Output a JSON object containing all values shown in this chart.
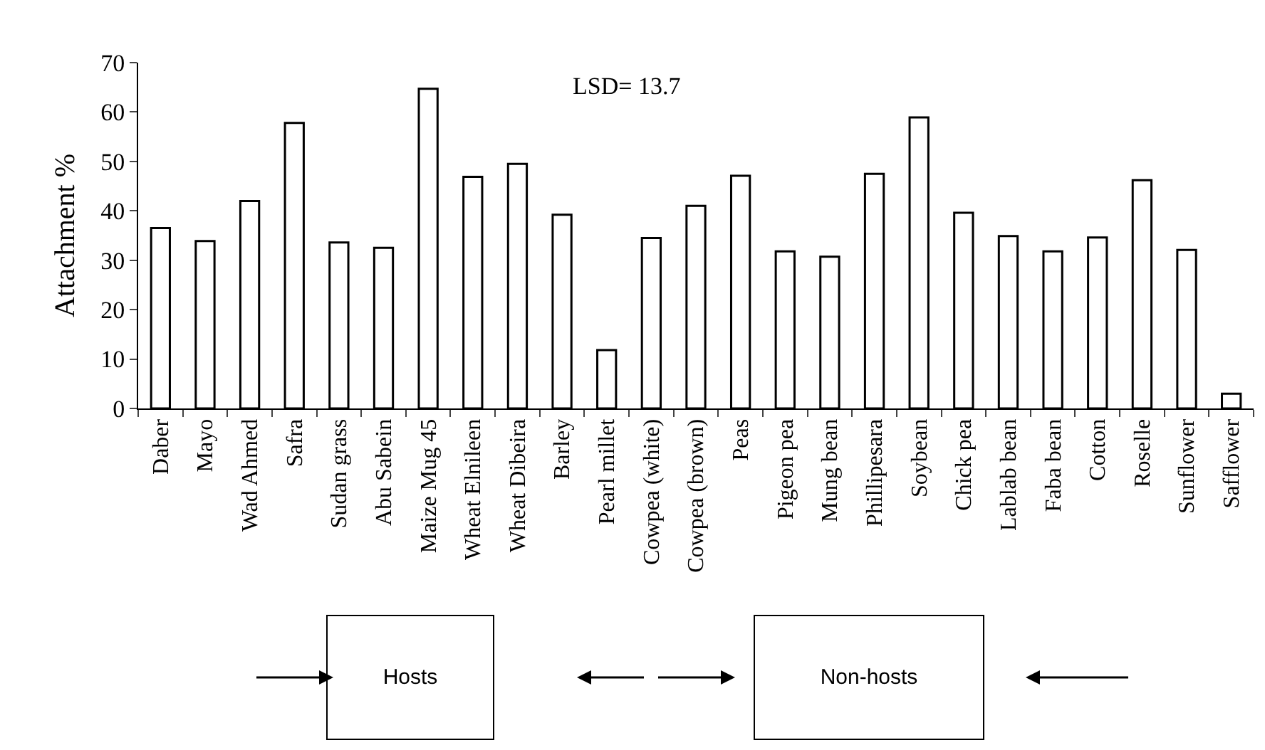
{
  "chart_data": {
    "type": "bar",
    "ylabel": "Attachment %",
    "categories": [
      "Daber",
      "Mayo",
      "Wad Ahmed",
      "Safra",
      "Sudan grass",
      "Abu Sabein",
      "Maize Mug 45",
      "Wheat Elnileen",
      "Wheat Dibeira",
      "Barley",
      "Pearl millet",
      "Cowpea (white)",
      "Cowpea (brown)",
      "Peas",
      "Pigeon pea",
      "Mung bean",
      "Phillipesara",
      "Soybean",
      "Chick pea",
      "Lablab bean",
      "Faba bean",
      "Cotton",
      "Roselle",
      "Sunflower",
      "Safflower"
    ],
    "values": [
      36.5,
      33.9,
      42.0,
      57.8,
      33.6,
      32.5,
      64.7,
      46.9,
      49.5,
      39.2,
      11.8,
      34.5,
      41.0,
      47.1,
      31.8,
      30.7,
      47.5,
      58.9,
      39.6,
      34.9,
      31.8,
      34.6,
      46.2,
      32.1,
      3.0
    ],
    "color": "#ffffff",
    "ylim": [
      0,
      70
    ],
    "yticks": [
      0,
      10,
      20,
      30,
      40,
      50,
      60,
      70
    ],
    "grid": false,
    "annotations": [
      "LSD= 13.7",
      "Hosts",
      "Non-hosts"
    ]
  }
}
